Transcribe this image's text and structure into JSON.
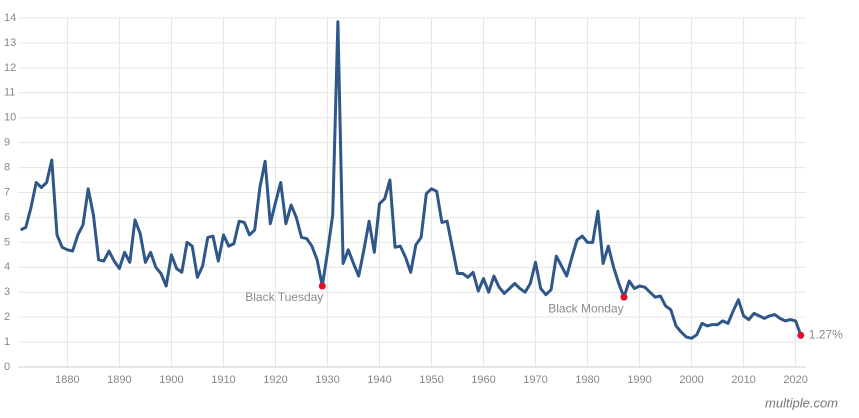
{
  "watermark": "multiple.com",
  "chart_data": {
    "type": "line",
    "x": [
      1871,
      1872,
      1873,
      1874,
      1875,
      1876,
      1877,
      1878,
      1879,
      1880,
      1881,
      1882,
      1883,
      1884,
      1885,
      1886,
      1887,
      1888,
      1889,
      1890,
      1891,
      1892,
      1893,
      1894,
      1895,
      1896,
      1897,
      1898,
      1899,
      1900,
      1901,
      1902,
      1903,
      1904,
      1905,
      1906,
      1907,
      1908,
      1909,
      1910,
      1911,
      1912,
      1913,
      1914,
      1915,
      1916,
      1917,
      1918,
      1919,
      1920,
      1921,
      1922,
      1923,
      1924,
      1925,
      1926,
      1927,
      1928,
      1929,
      1930,
      1931,
      1932,
      1933,
      1934,
      1935,
      1936,
      1937,
      1938,
      1939,
      1940,
      1941,
      1942,
      1943,
      1944,
      1945,
      1946,
      1947,
      1948,
      1949,
      1950,
      1951,
      1952,
      1953,
      1954,
      1955,
      1956,
      1957,
      1958,
      1959,
      1960,
      1961,
      1962,
      1963,
      1964,
      1965,
      1966,
      1967,
      1968,
      1969,
      1970,
      1971,
      1972,
      1973,
      1974,
      1975,
      1976,
      1977,
      1978,
      1979,
      1980,
      1981,
      1982,
      1983,
      1984,
      1985,
      1986,
      1987,
      1988,
      1989,
      1990,
      1991,
      1992,
      1993,
      1994,
      1995,
      1996,
      1997,
      1998,
      1999,
      2000,
      2001,
      2002,
      2003,
      2004,
      2005,
      2006,
      2007,
      2008,
      2009,
      2010,
      2011,
      2012,
      2013,
      2014,
      2015,
      2016,
      2017,
      2018,
      2019,
      2020,
      2021
    ],
    "series": [
      {
        "color": "#2f5788",
        "values": [
          5.5,
          5.6,
          6.4,
          7.4,
          7.2,
          7.4,
          8.3,
          5.3,
          4.8,
          4.7,
          4.65,
          5.3,
          5.7,
          7.15,
          6.1,
          4.3,
          4.25,
          4.65,
          4.25,
          3.95,
          4.6,
          4.2,
          5.9,
          5.35,
          4.2,
          4.6,
          4.0,
          3.75,
          3.25,
          4.5,
          3.95,
          3.8,
          5.0,
          4.85,
          3.6,
          4.05,
          5.2,
          5.25,
          4.25,
          5.3,
          4.85,
          4.95,
          5.85,
          5.8,
          5.3,
          5.5,
          7.2,
          8.25,
          5.75,
          6.6,
          7.4,
          5.75,
          6.5,
          6.0,
          5.2,
          5.15,
          4.85,
          4.3,
          3.25,
          4.6,
          6.1,
          13.85,
          4.15,
          4.7,
          4.15,
          3.65,
          4.7,
          5.85,
          4.6,
          6.55,
          6.75,
          7.5,
          4.8,
          4.85,
          4.4,
          3.8,
          4.9,
          5.2,
          6.95,
          7.15,
          7.05,
          5.8,
          5.85,
          4.8,
          3.75,
          3.75,
          3.6,
          3.8,
          3.05,
          3.55,
          3.0,
          3.65,
          3.2,
          2.95,
          3.15,
          3.35,
          3.15,
          3.0,
          3.35,
          4.2,
          3.15,
          2.9,
          3.1,
          4.45,
          4.05,
          3.65,
          4.4,
          5.1,
          5.25,
          5.0,
          5.0,
          6.25,
          4.15,
          4.85,
          4.0,
          3.35,
          2.8,
          3.45,
          3.15,
          3.25,
          3.2,
          3.0,
          2.8,
          2.85,
          2.45,
          2.3,
          1.65,
          1.4,
          1.2,
          1.15,
          1.3,
          1.75,
          1.65,
          1.7,
          1.7,
          1.85,
          1.75,
          2.25,
          2.7,
          2.05,
          1.9,
          2.15,
          2.05,
          1.95,
          2.05,
          2.1,
          1.95,
          1.85,
          1.9,
          1.85,
          1.27
        ]
      }
    ],
    "annotations": [
      {
        "text": "Black Tuesday",
        "x": 1929,
        "color": "#e4102b"
      },
      {
        "text": "Black Monday",
        "x": 1987,
        "color": "#e4102b"
      },
      {
        "text": "1.27%",
        "x": 2021,
        "color": "#e4102b"
      }
    ],
    "xlim": [
      1870.5,
      2022
    ],
    "xticks": [
      1880,
      1890,
      1900,
      1910,
      1920,
      1930,
      1940,
      1950,
      1960,
      1970,
      1980,
      1990,
      2000,
      2010,
      2020
    ],
    "ylim": [
      0,
      14
    ],
    "yticks": [
      0,
      1,
      2,
      3,
      4,
      5,
      6,
      7,
      8,
      9,
      10,
      11,
      12,
      13,
      14
    ],
    "grid": true
  }
}
